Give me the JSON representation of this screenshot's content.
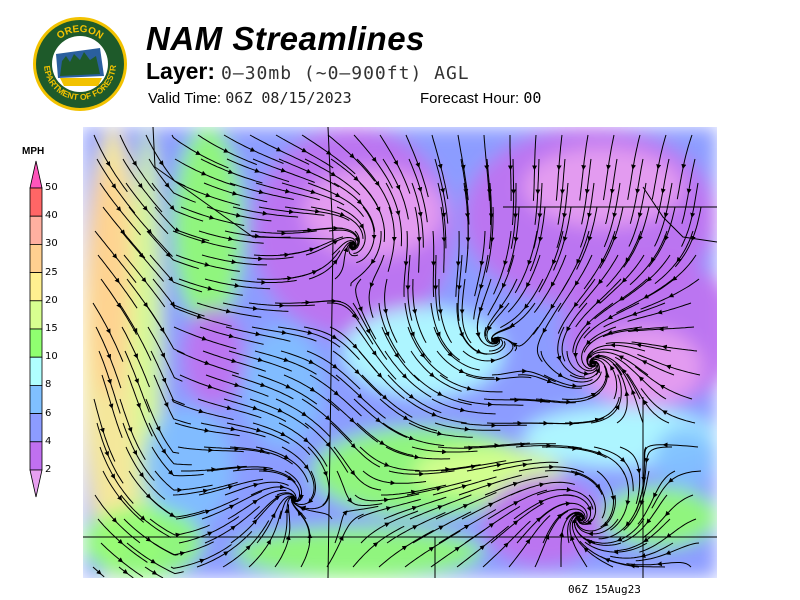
{
  "header": {
    "logo_text": [
      "OREGON",
      "DEPARTMENT OF FORESTRY"
    ],
    "title": "NAM Streamlines",
    "layer_label": "Layer:",
    "layer_value": "0–30mb (~0–900ft) AGL",
    "valid_label": "Valid Time:",
    "valid_value": "06Z 08/15/2023",
    "forecast_label": "Forecast Hour:",
    "forecast_value": "00"
  },
  "legend": {
    "unit": "MPH",
    "ticks": [
      "50",
      "40",
      "30",
      "25",
      "20",
      "15",
      "10",
      "8",
      "6",
      "4",
      "2"
    ],
    "colors": {
      "above_50": "#ff55bb",
      "40_50": "#ff6666",
      "30_40": "#ffb0a0",
      "25_30": "#ffd090",
      "20_25": "#fff090",
      "15_20": "#d8ff90",
      "10_15": "#90ff70",
      "8_10": "#b0ffff",
      "6_8": "#80c0ff",
      "4_6": "#8c9cff",
      "2_4": "#c070f0",
      "below_2": "#e8a0f0"
    }
  },
  "footer": {
    "stamp": "06Z 15Aug23"
  }
}
